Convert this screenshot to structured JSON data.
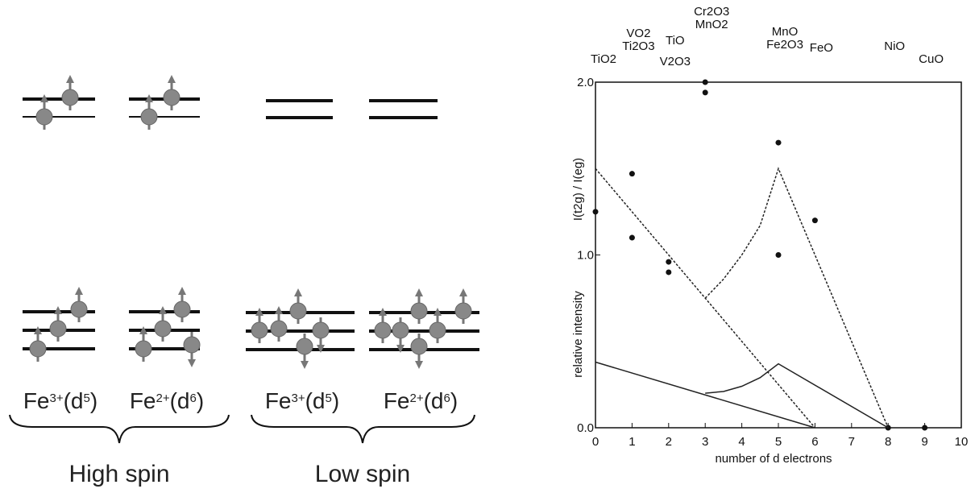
{
  "diagram": {
    "ions": [
      {
        "parts": [
          {
            "text": "Fe"
          },
          {
            "text": "3+",
            "sup": true
          },
          {
            "text": "(d"
          },
          {
            "text": "5",
            "sup": true
          },
          {
            "text": ")"
          }
        ]
      },
      {
        "parts": [
          {
            "text": "Fe"
          },
          {
            "text": "2+",
            "sup": true
          },
          {
            "text": "(d"
          },
          {
            "text": "6",
            "sup": true
          },
          {
            "text": ")"
          }
        ]
      },
      {
        "parts": [
          {
            "text": "Fe"
          },
          {
            "text": "3+",
            "sup": true
          },
          {
            "text": "(d"
          },
          {
            "text": "5",
            "sup": true
          },
          {
            "text": ")"
          }
        ]
      },
      {
        "parts": [
          {
            "text": "Fe"
          },
          {
            "text": "2+",
            "sup": true
          },
          {
            "text": "(d"
          },
          {
            "text": "6",
            "sup": true
          },
          {
            "text": ")"
          }
        ]
      }
    ],
    "groups": [
      "High spin",
      "Low spin"
    ]
  },
  "chart_data": {
    "type": "scatter",
    "xlabel": "number of d electrons",
    "ylabel": "relative intensity",
    "ratio_label": "I(t2g) / I(eg)",
    "xlim": [
      0,
      10
    ],
    "xticks": [
      0,
      1,
      2,
      3,
      4,
      5,
      6,
      7,
      8,
      9,
      10
    ],
    "ylim": [
      0,
      2
    ],
    "yticks": [
      {
        "value": 0,
        "label": "0.0"
      },
      {
        "value": 1,
        "label": "1.0"
      },
      {
        "value": 2,
        "label": "2.0"
      }
    ],
    "compounds": [
      {
        "x": 0,
        "labels": [
          "TiO2"
        ]
      },
      {
        "x": 1,
        "labels": [
          "VO2",
          "Ti2O3"
        ]
      },
      {
        "x": 2,
        "labels": [
          "V2O3",
          "TiO"
        ]
      },
      {
        "x": 3,
        "labels": [
          "Cr2O3",
          "MnO2"
        ]
      },
      {
        "x": 5,
        "labels": [
          "MnO",
          "Fe2O3"
        ]
      },
      {
        "x": 6,
        "labels": [
          "FeO"
        ]
      },
      {
        "x": 8,
        "labels": [
          "NiO"
        ]
      },
      {
        "x": 9,
        "labels": [
          "CuO"
        ]
      }
    ],
    "series": [
      {
        "type": "scatter",
        "color": "#111111",
        "x": [
          0,
          1,
          1,
          2,
          2,
          3,
          3,
          5,
          5,
          6,
          8,
          9
        ],
        "values": [
          1.25,
          1.47,
          1.1,
          0.96,
          0.9,
          2.0,
          1.94,
          1.65,
          1.0,
          1.2,
          0,
          0
        ]
      },
      {
        "type": "line",
        "style": "dashed",
        "color": "#222222",
        "x": [
          0,
          6
        ],
        "values": [
          1.5,
          0
        ]
      },
      {
        "type": "line",
        "style": "dashed",
        "color": "#222222",
        "x": [
          3,
          3.5,
          4,
          4.5,
          5,
          8
        ],
        "values": [
          0.75,
          0.86,
          1.0,
          1.17,
          1.5,
          0
        ]
      },
      {
        "type": "line",
        "style": "solid",
        "color": "#222222",
        "x": [
          0,
          6
        ],
        "values": [
          0.38,
          0
        ]
      },
      {
        "type": "line",
        "style": "solid",
        "color": "#222222",
        "x": [
          3,
          3.5,
          4,
          4.5,
          5,
          8
        ],
        "values": [
          0.2,
          0.21,
          0.24,
          0.29,
          0.37,
          0
        ]
      }
    ]
  }
}
